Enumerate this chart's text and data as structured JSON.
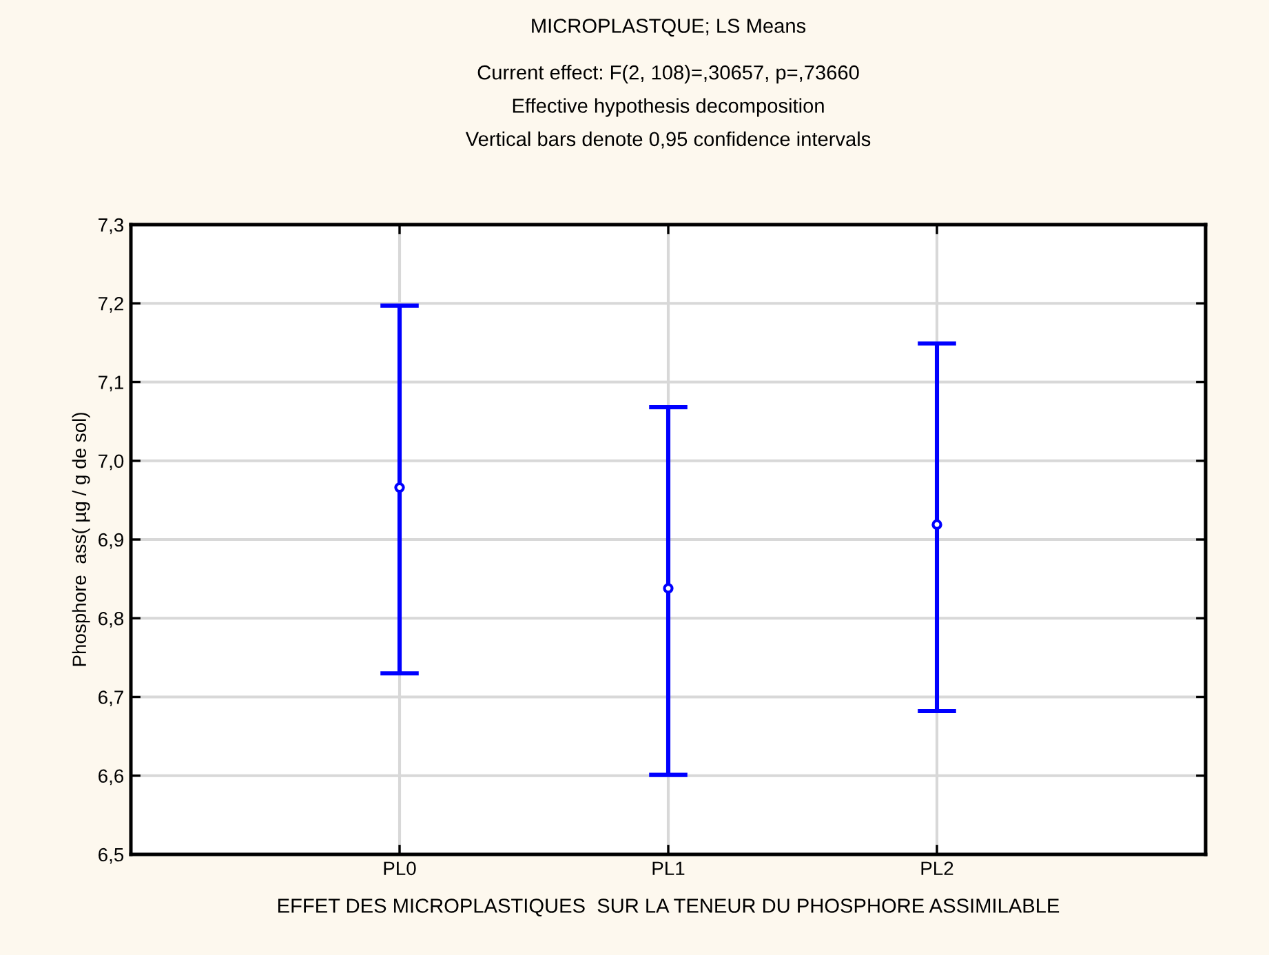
{
  "chart_data": {
    "type": "scatter",
    "title": "MICROPLASTQUE; LS Means",
    "subtitle": "Current effect: F(2, 108)=,30657, p=,73660\nEffective hypothesis decomposition\nVertical bars denote 0,95 confidence intervals",
    "xlabel": "EFFET DES MICROPLASTIQUES  SUR LA TENEUR DU PHOSPHORE ASSIMILABLE",
    "ylabel": "Phosphore  ass( µg / g de sol)",
    "categories": [
      "PL0",
      "PL1",
      "PL2"
    ],
    "values": [
      6.966,
      6.838,
      6.919
    ],
    "errors": [
      [
        6.73,
        7.197
      ],
      [
        6.601,
        7.068
      ],
      [
        6.682,
        7.149
      ]
    ],
    "color": "#0000ff",
    "marker": "circle",
    "ylim": [
      6.5,
      7.3
    ],
    "yticks": [
      {
        "value": 6.5,
        "label": "6,5"
      },
      {
        "value": 6.6,
        "label": "6,6"
      },
      {
        "value": 6.7,
        "label": "6,7"
      },
      {
        "value": 6.8,
        "label": "6,8"
      },
      {
        "value": 6.9,
        "label": "6,9"
      },
      {
        "value": 7.0,
        "label": "7,0"
      },
      {
        "value": 7.1,
        "label": "7,1"
      },
      {
        "value": 7.2,
        "label": "7,2"
      },
      {
        "value": 7.3,
        "label": "7,3"
      }
    ],
    "grid": true
  }
}
